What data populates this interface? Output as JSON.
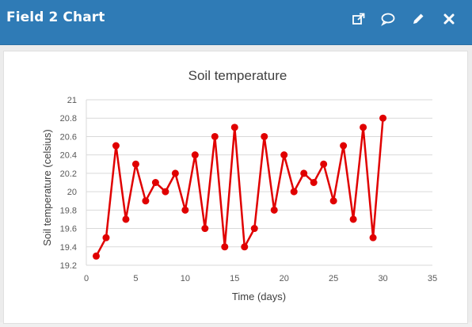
{
  "header": {
    "title": "Field 2 Chart",
    "icons": [
      "external-link-icon",
      "comment-icon",
      "edit-icon",
      "close-icon"
    ],
    "background": "#2f7bb6"
  },
  "chart_data": {
    "type": "line",
    "title": "Soil temperature",
    "xlabel": "Time (days)",
    "ylabel": "Soil temperature (celsius)",
    "xlim": [
      0,
      35
    ],
    "ylim": [
      19.2,
      21
    ],
    "x_ticks": [
      "0",
      "5",
      "10",
      "15",
      "20",
      "25",
      "30",
      "35"
    ],
    "y_ticks": [
      "19.2",
      "19.4",
      "19.6",
      "19.8",
      "20",
      "20.2",
      "20.4",
      "20.6",
      "20.8",
      "21"
    ],
    "grid": "horizontal",
    "legend": "none",
    "series": [
      {
        "color": "#e00000",
        "x": [
          1,
          2,
          3,
          4,
          5,
          6,
          7,
          8,
          9,
          10,
          11,
          12,
          13,
          14,
          15,
          16,
          17,
          18,
          19,
          20,
          21,
          22,
          23,
          24,
          25,
          26,
          27,
          28,
          29,
          30
        ],
        "y": [
          19.3,
          19.5,
          20.5,
          19.7,
          20.3,
          19.9,
          20.1,
          20.0,
          20.2,
          19.8,
          20.4,
          19.6,
          20.6,
          19.4,
          20.7,
          19.4,
          19.6,
          20.6,
          19.8,
          20.4,
          20.0,
          20.2,
          20.1,
          20.3,
          19.9,
          20.5,
          19.7,
          20.7,
          19.5,
          20.8
        ]
      }
    ]
  }
}
